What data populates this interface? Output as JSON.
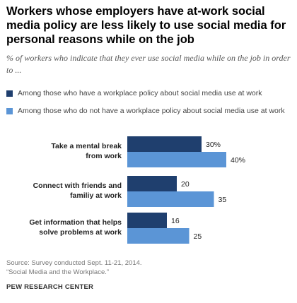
{
  "header": {
    "title": "Workers whose employers have at-work social media policy are less likely to use social media for personal reasons while on the job",
    "subtitle": "% of workers who indicate that they ever use social media while on the job in order to ..."
  },
  "colors": {
    "with_policy": "#1f3f6e",
    "without_policy": "#5b95d6"
  },
  "chart_data": {
    "type": "bar",
    "orientation": "horizontal",
    "categories": [
      [
        "Take a mental break",
        "from work"
      ],
      [
        "Connect with friends and",
        "familiy at work"
      ],
      [
        "Get information that helps",
        "solve problems at work"
      ]
    ],
    "series": [
      {
        "name": "Among those who have a workplace policy about social media use at work",
        "values": [
          30,
          20,
          16
        ],
        "labels": [
          "30%",
          "20",
          "16"
        ],
        "color": "#1f3f6e"
      },
      {
        "name": "Among those who do not have a workplace policy about social media use at work",
        "values": [
          40,
          35,
          25
        ],
        "labels": [
          "40%",
          "35",
          "25"
        ],
        "color": "#5b95d6"
      }
    ],
    "title": "",
    "xlabel": "",
    "ylabel": "",
    "xlim": [
      0,
      40
    ],
    "grid": false,
    "legend": "top-left"
  },
  "footer": {
    "source": "Source: Survey conducted Sept. 11-21, 2014.",
    "report": "“Social Media and the Workplace.”",
    "org": "PEW RESEARCH CENTER"
  }
}
